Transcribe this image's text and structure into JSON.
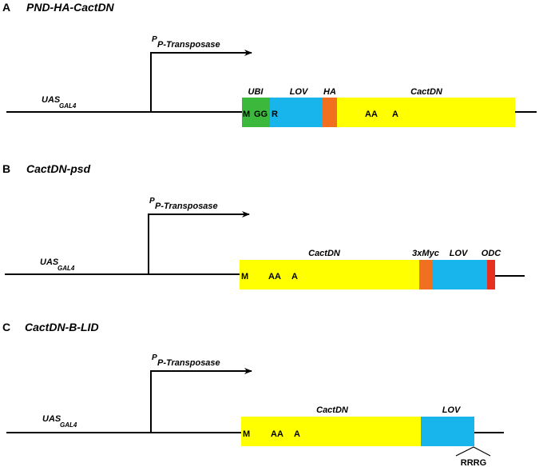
{
  "panels": [
    {
      "letter": "A",
      "title": "PND-HA-CactDN",
      "uas": "UAS",
      "uas_sub": "GAL4",
      "promoter": "P",
      "promoter_sub": "P-Transposase",
      "segments": [
        {
          "label": "UBI",
          "color": "#3cb83c"
        },
        {
          "label": "LOV",
          "color": "#18b4ec"
        },
        {
          "label": "HA",
          "color": "#f07020"
        },
        {
          "label": "CactDN",
          "color": "#ffff00"
        }
      ],
      "residues": [
        {
          "text": "M"
        },
        {
          "text": "GG"
        },
        {
          "text": "R"
        },
        {
          "text": "AA"
        },
        {
          "text": "A"
        }
      ]
    },
    {
      "letter": "B",
      "title": "CactDN-psd",
      "uas": "UAS",
      "uas_sub": "GAL4",
      "promoter": "P",
      "promoter_sub": "P-Transposase",
      "segments": [
        {
          "label": "CactDN",
          "color": "#ffff00"
        },
        {
          "label": "3xMyc",
          "color": "#f07020"
        },
        {
          "label": "LOV",
          "color": "#18b4ec"
        },
        {
          "label": "ODC",
          "color": "#e83020"
        }
      ],
      "residues": [
        {
          "text": "M"
        },
        {
          "text": "AA"
        },
        {
          "text": "A"
        }
      ]
    },
    {
      "letter": "C",
      "title": "CactDN-B-LID",
      "uas": "UAS",
      "uas_sub": "GAL4",
      "promoter": "P",
      "promoter_sub": "P-Transposase",
      "segments": [
        {
          "label": "CactDN",
          "color": "#ffff00"
        },
        {
          "label": "LOV",
          "color": "#18b4ec"
        }
      ],
      "residues": [
        {
          "text": "M"
        },
        {
          "text": "AA"
        },
        {
          "text": "A"
        }
      ],
      "tail_label": "RRRG"
    }
  ]
}
